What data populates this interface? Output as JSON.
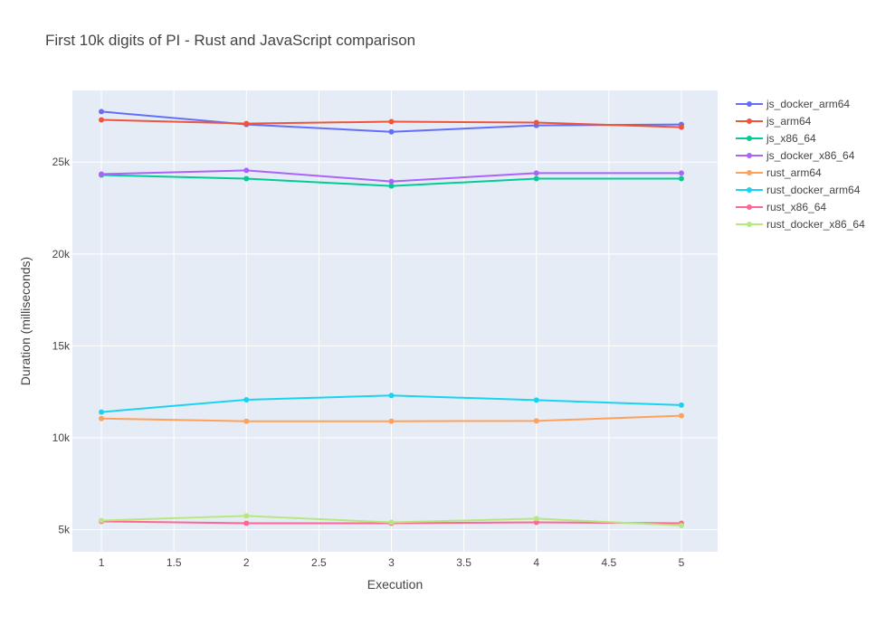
{
  "chart_data": {
    "type": "line",
    "title": "First 10k digits of PI - Rust and JavaScript comparison",
    "xlabel": "Execution",
    "ylabel": "Duration (milliseconds)",
    "xlim": [
      0.8,
      5.25
    ],
    "ylim": [
      3800,
      28900
    ],
    "x_ticks": [
      1,
      1.5,
      2,
      2.5,
      3,
      3.5,
      4,
      4.5,
      5
    ],
    "x_tick_labels": [
      "1",
      "1.5",
      "2",
      "2.5",
      "3",
      "3.5",
      "4",
      "4.5",
      "5"
    ],
    "y_ticks": [
      5000,
      10000,
      15000,
      20000,
      25000
    ],
    "y_tick_labels": [
      "5k",
      "10k",
      "15k",
      "20k",
      "25k"
    ],
    "grid": true,
    "legend_position": "top-right",
    "plot_background": "#e5ecf6",
    "x": [
      1,
      2,
      3,
      4,
      5
    ],
    "series": [
      {
        "name": "js_docker_arm64",
        "color": "#636efa",
        "values": [
          27750,
          27050,
          26650,
          27000,
          27050
        ]
      },
      {
        "name": "js_arm64",
        "color": "#ef553b",
        "values": [
          27300,
          27100,
          27200,
          27150,
          26900
        ]
      },
      {
        "name": "js_x86_64",
        "color": "#00cc96",
        "values": [
          24300,
          24100,
          23700,
          24100,
          24100
        ]
      },
      {
        "name": "js_docker_x86_64",
        "color": "#ab63fa",
        "values": [
          24350,
          24550,
          23950,
          24400,
          24400
        ]
      },
      {
        "name": "rust_arm64",
        "color": "#ffa15a",
        "values": [
          11050,
          10900,
          10900,
          10920,
          11200
        ]
      },
      {
        "name": "rust_docker_arm64",
        "color": "#19d3f3",
        "values": [
          11400,
          12070,
          12300,
          12050,
          11780
        ]
      },
      {
        "name": "rust_x86_64",
        "color": "#ff6692",
        "values": [
          5450,
          5350,
          5350,
          5400,
          5350
        ]
      },
      {
        "name": "rust_docker_x86_64",
        "color": "#b6e880",
        "values": [
          5500,
          5750,
          5400,
          5600,
          5230
        ]
      }
    ]
  }
}
